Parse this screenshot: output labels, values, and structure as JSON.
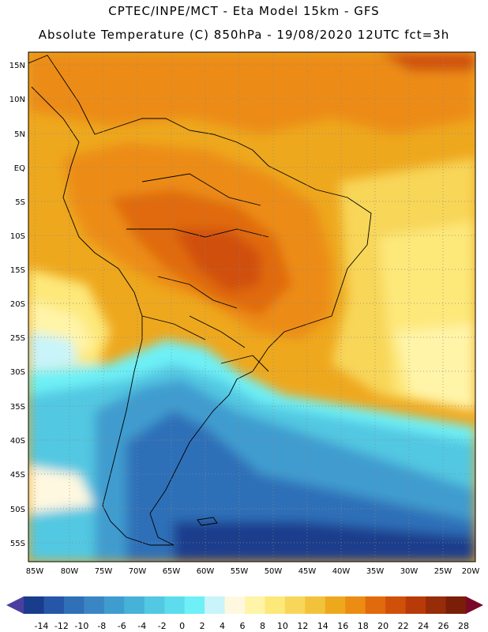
{
  "title_line1": "CPTEC/INPE/MCT -   Eta Model 15km - GFS",
  "title_line2": "Absolute Temperature (C) 850hPa - 19/08/2020 12UTC fct=3h",
  "lat_labels": [
    "15N",
    "10N",
    "5N",
    "EQ",
    "5S",
    "10S",
    "15S",
    "20S",
    "25S",
    "30S",
    "35S",
    "40S",
    "45S",
    "50S",
    "55S"
  ],
  "lon_labels": [
    "85W",
    "80W",
    "75W",
    "70W",
    "65W",
    "60W",
    "55W",
    "50W",
    "45W",
    "40W",
    "35W",
    "30W",
    "25W",
    "20W"
  ],
  "colorbar": {
    "ticks": [
      "-14",
      "-12",
      "-10",
      "-8",
      "-6",
      "-4",
      "-2",
      "0",
      "2",
      "4",
      "6",
      "8",
      "10",
      "12",
      "14",
      "16",
      "18",
      "20",
      "22",
      "24",
      "26",
      "28"
    ],
    "colors": [
      "#1a3c8c",
      "#2656a8",
      "#2f70b8",
      "#3a86c4",
      "#3f9ccf",
      "#47b2d8",
      "#52c8e2",
      "#5cdcec",
      "#6ef0f6",
      "#c8f4fa",
      "#fff8e0",
      "#fff4a8",
      "#fde87a",
      "#f8d659",
      "#f2c23a",
      "#eea81e",
      "#ec8c12",
      "#e06a0c",
      "#d0500a",
      "#b83a08",
      "#962c08",
      "#7a1e08"
    ]
  }
}
